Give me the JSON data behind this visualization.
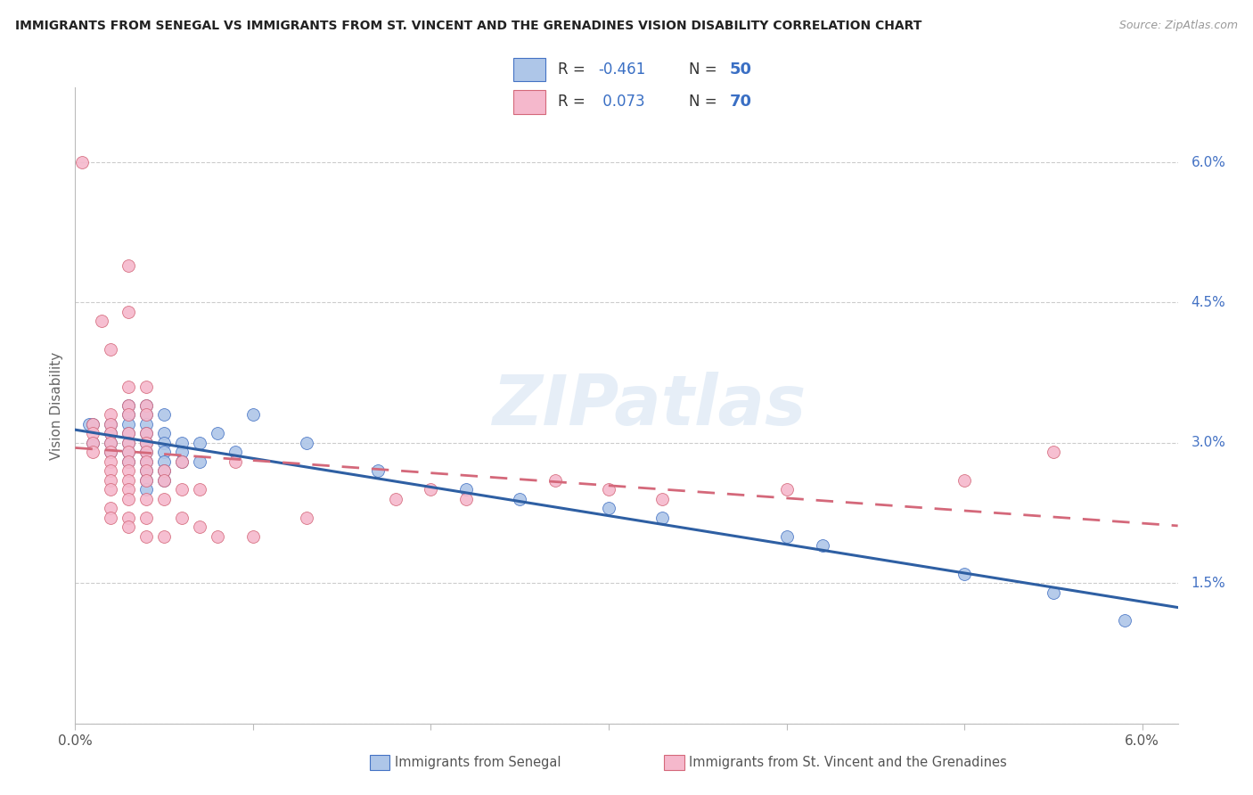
{
  "title": "IMMIGRANTS FROM SENEGAL VS IMMIGRANTS FROM ST. VINCENT AND THE GRENADINES VISION DISABILITY CORRELATION CHART",
  "source": "Source: ZipAtlas.com",
  "ylabel": "Vision Disability",
  "xlim": [
    0.0,
    0.062
  ],
  "ylim": [
    0.0,
    0.068
  ],
  "xtick_vals": [
    0.0,
    0.01,
    0.02,
    0.03,
    0.04,
    0.05,
    0.06
  ],
  "xticklabels": [
    "0.0%",
    "",
    "",
    "",
    "",
    "",
    "6.0%"
  ],
  "ytick_vals": [
    0.0,
    0.015,
    0.03,
    0.045,
    0.06
  ],
  "yticklabels": [
    "",
    "1.5%",
    "3.0%",
    "4.5%",
    "6.0%"
  ],
  "blue_fill": "#aec6e8",
  "blue_edge": "#4472c4",
  "pink_fill": "#f5b8cc",
  "pink_edge": "#d4687a",
  "pink_line_color": "#d4687a",
  "blue_line_color": "#2e5fa3",
  "watermark": "ZIPatlas",
  "footer_blue": "Immigrants from Senegal",
  "footer_pink": "Immigrants from St. Vincent and the Grenadines",
  "blue_points": [
    [
      0.0008,
      0.032
    ],
    [
      0.001,
      0.032
    ],
    [
      0.001,
      0.03
    ],
    [
      0.002,
      0.032
    ],
    [
      0.002,
      0.031
    ],
    [
      0.002,
      0.03
    ],
    [
      0.002,
      0.029
    ],
    [
      0.003,
      0.034
    ],
    [
      0.003,
      0.033
    ],
    [
      0.003,
      0.032
    ],
    [
      0.003,
      0.031
    ],
    [
      0.003,
      0.03
    ],
    [
      0.003,
      0.029
    ],
    [
      0.003,
      0.028
    ],
    [
      0.004,
      0.034
    ],
    [
      0.004,
      0.033
    ],
    [
      0.004,
      0.032
    ],
    [
      0.004,
      0.031
    ],
    [
      0.004,
      0.03
    ],
    [
      0.004,
      0.029
    ],
    [
      0.004,
      0.028
    ],
    [
      0.004,
      0.027
    ],
    [
      0.004,
      0.026
    ],
    [
      0.004,
      0.025
    ],
    [
      0.005,
      0.033
    ],
    [
      0.005,
      0.031
    ],
    [
      0.005,
      0.03
    ],
    [
      0.005,
      0.029
    ],
    [
      0.005,
      0.028
    ],
    [
      0.005,
      0.027
    ],
    [
      0.005,
      0.026
    ],
    [
      0.006,
      0.03
    ],
    [
      0.006,
      0.029
    ],
    [
      0.006,
      0.028
    ],
    [
      0.007,
      0.03
    ],
    [
      0.007,
      0.028
    ],
    [
      0.008,
      0.031
    ],
    [
      0.009,
      0.029
    ],
    [
      0.01,
      0.033
    ],
    [
      0.013,
      0.03
    ],
    [
      0.017,
      0.027
    ],
    [
      0.022,
      0.025
    ],
    [
      0.025,
      0.024
    ],
    [
      0.03,
      0.023
    ],
    [
      0.033,
      0.022
    ],
    [
      0.04,
      0.02
    ],
    [
      0.042,
      0.019
    ],
    [
      0.05,
      0.016
    ],
    [
      0.055,
      0.014
    ],
    [
      0.059,
      0.011
    ]
  ],
  "pink_points": [
    [
      0.0004,
      0.06
    ],
    [
      0.001,
      0.032
    ],
    [
      0.001,
      0.031
    ],
    [
      0.001,
      0.03
    ],
    [
      0.001,
      0.029
    ],
    [
      0.0015,
      0.043
    ],
    [
      0.002,
      0.04
    ],
    [
      0.002,
      0.033
    ],
    [
      0.002,
      0.032
    ],
    [
      0.002,
      0.031
    ],
    [
      0.002,
      0.03
    ],
    [
      0.002,
      0.029
    ],
    [
      0.002,
      0.028
    ],
    [
      0.002,
      0.027
    ],
    [
      0.002,
      0.026
    ],
    [
      0.002,
      0.025
    ],
    [
      0.002,
      0.023
    ],
    [
      0.002,
      0.022
    ],
    [
      0.003,
      0.049
    ],
    [
      0.003,
      0.044
    ],
    [
      0.003,
      0.036
    ],
    [
      0.003,
      0.034
    ],
    [
      0.003,
      0.033
    ],
    [
      0.003,
      0.031
    ],
    [
      0.003,
      0.03
    ],
    [
      0.003,
      0.029
    ],
    [
      0.003,
      0.028
    ],
    [
      0.003,
      0.027
    ],
    [
      0.003,
      0.026
    ],
    [
      0.003,
      0.025
    ],
    [
      0.003,
      0.024
    ],
    [
      0.003,
      0.022
    ],
    [
      0.003,
      0.021
    ],
    [
      0.004,
      0.036
    ],
    [
      0.004,
      0.034
    ],
    [
      0.004,
      0.033
    ],
    [
      0.004,
      0.031
    ],
    [
      0.004,
      0.03
    ],
    [
      0.004,
      0.029
    ],
    [
      0.004,
      0.028
    ],
    [
      0.004,
      0.027
    ],
    [
      0.004,
      0.026
    ],
    [
      0.004,
      0.024
    ],
    [
      0.004,
      0.022
    ],
    [
      0.004,
      0.02
    ],
    [
      0.005,
      0.027
    ],
    [
      0.005,
      0.026
    ],
    [
      0.005,
      0.024
    ],
    [
      0.005,
      0.02
    ],
    [
      0.006,
      0.028
    ],
    [
      0.006,
      0.025
    ],
    [
      0.006,
      0.022
    ],
    [
      0.007,
      0.025
    ],
    [
      0.007,
      0.021
    ],
    [
      0.008,
      0.02
    ],
    [
      0.009,
      0.028
    ],
    [
      0.01,
      0.02
    ],
    [
      0.013,
      0.022
    ],
    [
      0.018,
      0.024
    ],
    [
      0.02,
      0.025
    ],
    [
      0.022,
      0.024
    ],
    [
      0.027,
      0.026
    ],
    [
      0.03,
      0.025
    ],
    [
      0.033,
      0.024
    ],
    [
      0.04,
      0.025
    ],
    [
      0.05,
      0.026
    ],
    [
      0.055,
      0.029
    ]
  ]
}
